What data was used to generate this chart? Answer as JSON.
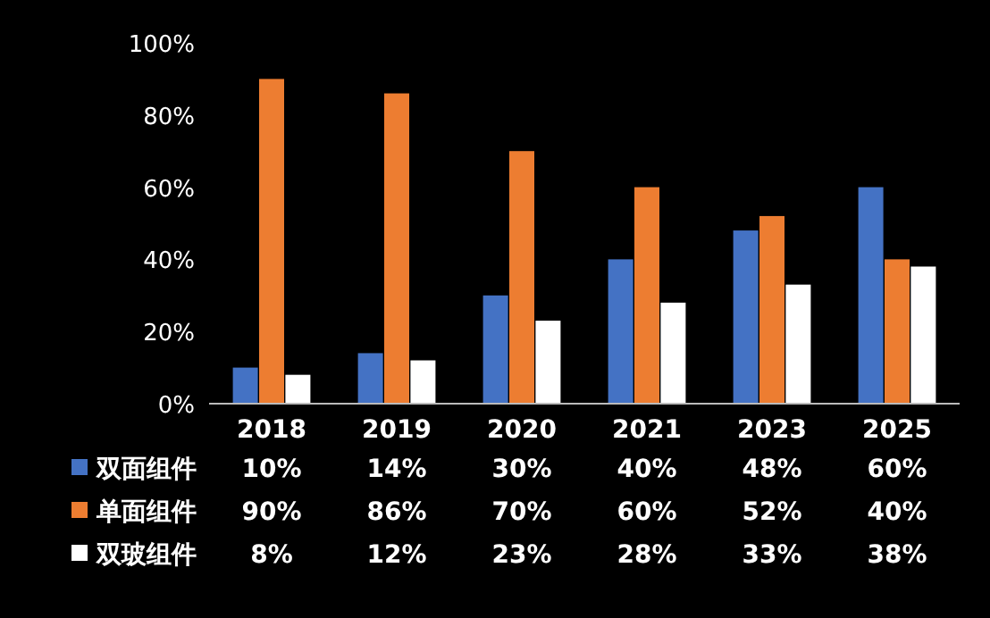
{
  "chart_data": {
    "type": "bar",
    "categories": [
      "2018",
      "2019",
      "2020",
      "2021",
      "2023",
      "2025"
    ],
    "series": [
      {
        "name": "双面组件",
        "color": "#4472c4",
        "values": [
          10,
          14,
          30,
          40,
          48,
          60
        ],
        "value_labels": [
          "10%",
          "14%",
          "30%",
          "40%",
          "48%",
          "60%"
        ]
      },
      {
        "name": "单面组件",
        "color": "#ed7d31",
        "values": [
          90,
          86,
          70,
          60,
          52,
          40
        ],
        "value_labels": [
          "90%",
          "86%",
          "70%",
          "60%",
          "52%",
          "40%"
        ]
      },
      {
        "name": "双玻组件",
        "color": "#ffffff",
        "values": [
          8,
          12,
          23,
          28,
          33,
          38
        ],
        "value_labels": [
          "8%",
          "12%",
          "23%",
          "28%",
          "33%",
          "38%"
        ]
      }
    ],
    "ylim": [
      0,
      100
    ],
    "yticks": [
      {
        "value": 0,
        "label": "0%"
      },
      {
        "value": 20,
        "label": "20%"
      },
      {
        "value": 40,
        "label": "40%"
      },
      {
        "value": 60,
        "label": "60%"
      },
      {
        "value": 80,
        "label": "80%"
      },
      {
        "value": 100,
        "label": "100%"
      }
    ],
    "grid": false,
    "legend": "bottom"
  }
}
